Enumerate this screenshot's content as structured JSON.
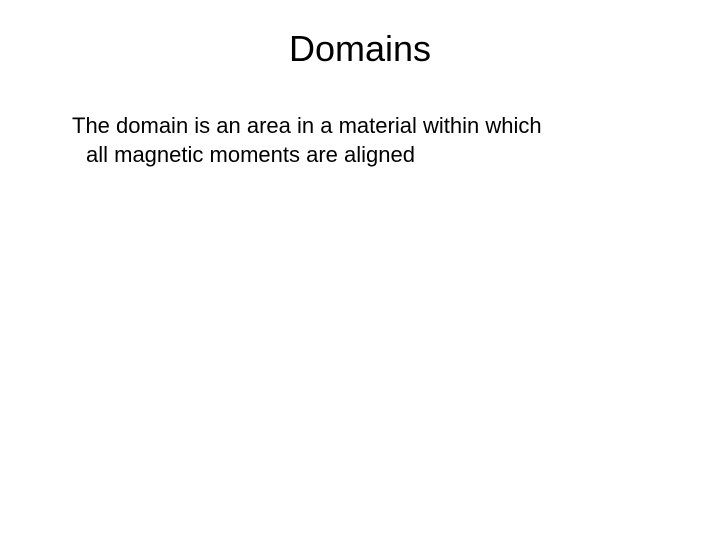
{
  "slide": {
    "title": "Domains",
    "body_line1": "The domain is an area in a material within which",
    "body_line2": "all magnetic moments are aligned"
  },
  "style": {
    "background_color": "#ffffff",
    "text_color": "#000000",
    "title_fontsize": 36,
    "body_fontsize": 22,
    "font_family": "Arial"
  }
}
